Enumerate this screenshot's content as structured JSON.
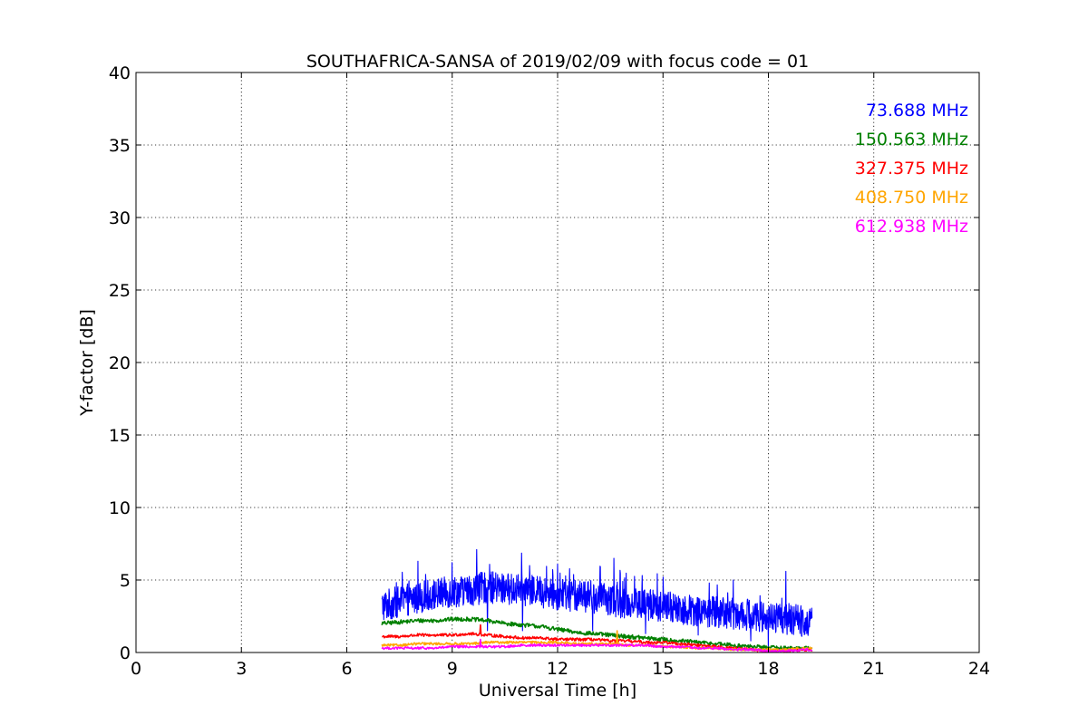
{
  "chart_data": {
    "type": "line",
    "title": "SOUTHAFRICA-SANSA of 2019/02/09 with focus code = 01",
    "xlabel": "Universal Time [h]",
    "ylabel": "Y-factor [dB]",
    "xlim": [
      0,
      24
    ],
    "ylim": [
      0,
      40
    ],
    "xticks": [
      0,
      3,
      6,
      9,
      12,
      15,
      18,
      21,
      24
    ],
    "yticks": [
      0,
      5,
      10,
      15,
      20,
      25,
      30,
      35,
      40
    ],
    "grid": true,
    "legend_placement": "top-right",
    "series": [
      {
        "name": "73.688 MHz",
        "color": "#0000ff",
        "x": [
          7.0,
          7.5,
          8.0,
          8.5,
          9.0,
          9.5,
          10.0,
          10.5,
          11.0,
          11.5,
          12.0,
          12.5,
          13.0,
          13.5,
          14.0,
          14.5,
          15.0,
          15.5,
          16.0,
          16.5,
          17.0,
          17.5,
          18.0,
          18.5,
          19.0,
          19.25
        ],
        "y": [
          3.2,
          3.5,
          3.8,
          4.0,
          4.2,
          4.3,
          4.5,
          4.4,
          4.3,
          4.2,
          4.0,
          3.9,
          3.8,
          3.6,
          3.4,
          3.3,
          3.2,
          3.0,
          2.9,
          2.8,
          2.7,
          2.6,
          2.4,
          2.3,
          2.2,
          2.1
        ],
        "peaks": [
          [
            9.0,
            6.2
          ],
          [
            9.7,
            7.1
          ],
          [
            11.2,
            6.0
          ],
          [
            12.0,
            6.1
          ],
          [
            13.0,
            5.5
          ],
          [
            13.6,
            6.5
          ],
          [
            15.0,
            5.2
          ],
          [
            17.0,
            5.0
          ],
          [
            18.5,
            5.6
          ]
        ],
        "dips": [
          [
            10.0,
            1.5
          ],
          [
            11.0,
            1.5
          ],
          [
            13.0,
            1.5
          ],
          [
            14.5,
            1.3
          ],
          [
            16.0,
            1.2
          ],
          [
            17.5,
            0.8
          ],
          [
            18.0,
            0.2
          ]
        ]
      },
      {
        "name": "150.563 MHz",
        "color": "#008000",
        "x": [
          7.0,
          7.5,
          8.0,
          8.5,
          9.0,
          9.5,
          10.0,
          10.5,
          11.0,
          11.5,
          12.0,
          12.5,
          13.0,
          13.5,
          14.0,
          14.5,
          15.0,
          15.5,
          16.0,
          16.5,
          17.0,
          17.5,
          18.0,
          18.5,
          19.0,
          19.25
        ],
        "y": [
          2.0,
          2.1,
          2.2,
          2.2,
          2.3,
          2.3,
          2.2,
          2.0,
          1.9,
          1.8,
          1.6,
          1.4,
          1.3,
          1.2,
          1.1,
          1.0,
          0.9,
          0.8,
          0.7,
          0.6,
          0.5,
          0.4,
          0.35,
          0.3,
          0.3,
          0.3
        ]
      },
      {
        "name": "327.375 MHz",
        "color": "#ff0000",
        "x": [
          7.0,
          7.5,
          8.0,
          8.5,
          9.0,
          9.5,
          10.0,
          10.5,
          11.0,
          11.5,
          12.0,
          12.5,
          13.0,
          13.5,
          14.0,
          14.5,
          15.0,
          15.5,
          16.0,
          16.5,
          17.0,
          17.5,
          18.0,
          18.5,
          19.0,
          19.25
        ],
        "y": [
          1.1,
          1.1,
          1.2,
          1.2,
          1.2,
          1.3,
          1.2,
          1.1,
          1.0,
          1.0,
          0.9,
          0.9,
          0.9,
          0.8,
          0.8,
          0.7,
          0.7,
          0.6,
          0.5,
          0.4,
          0.3,
          0.2,
          0.1,
          0.1,
          0.2,
          0.2
        ],
        "peaks": [
          [
            9.8,
            1.9
          ]
        ]
      },
      {
        "name": "408.750 MHz",
        "color": "#ffa500",
        "x": [
          7.0,
          7.5,
          8.0,
          8.5,
          9.0,
          9.5,
          10.0,
          10.5,
          11.0,
          11.5,
          12.0,
          12.5,
          13.0,
          13.5,
          14.0,
          14.5,
          15.0,
          15.5,
          16.0,
          16.5,
          17.0,
          17.5,
          18.0,
          18.5,
          19.0,
          19.25
        ],
        "y": [
          0.5,
          0.5,
          0.6,
          0.6,
          0.6,
          0.6,
          0.7,
          0.7,
          0.7,
          0.7,
          0.7,
          0.6,
          0.6,
          0.6,
          0.5,
          0.5,
          0.4,
          0.4,
          0.3,
          0.3,
          0.2,
          0.2,
          0.2,
          0.2,
          0.3,
          0.3
        ],
        "peaks": [
          [
            13.7,
            1.5
          ]
        ]
      },
      {
        "name": "612.938 MHz",
        "color": "#ff00ff",
        "x": [
          7.0,
          7.5,
          8.0,
          8.5,
          9.0,
          9.5,
          10.0,
          10.5,
          11.0,
          11.5,
          12.0,
          12.5,
          13.0,
          13.5,
          14.0,
          14.5,
          15.0,
          15.5,
          16.0,
          16.5,
          17.0,
          17.5,
          18.0,
          18.5,
          19.0,
          19.25
        ],
        "y": [
          0.3,
          0.3,
          0.3,
          0.3,
          0.4,
          0.4,
          0.4,
          0.4,
          0.5,
          0.5,
          0.5,
          0.5,
          0.5,
          0.5,
          0.5,
          0.5,
          0.4,
          0.4,
          0.3,
          0.3,
          0.2,
          0.2,
          0.1,
          0.1,
          0.2,
          0.2
        ],
        "peaks": [
          [
            9.8,
            0.9
          ]
        ]
      }
    ]
  }
}
